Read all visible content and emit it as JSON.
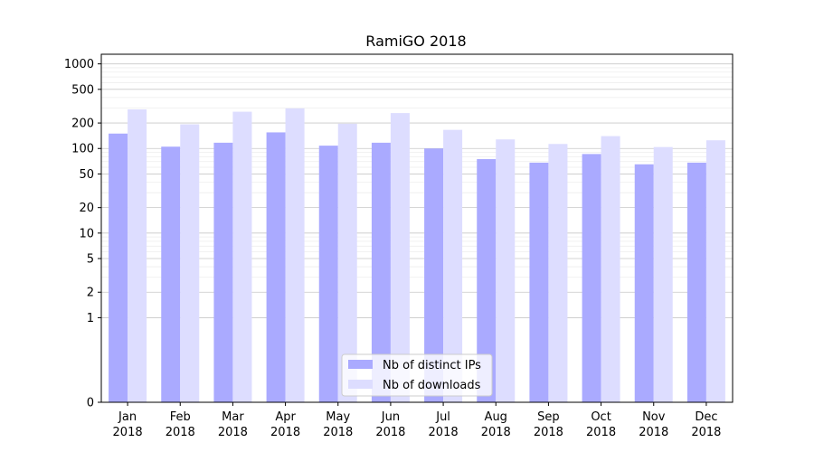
{
  "chart_data": {
    "type": "bar",
    "title": "RamiGO 2018",
    "xlabel": "",
    "ylabel": "",
    "y_scale": "symlog",
    "ylim": [
      0,
      1300
    ],
    "y_ticks": [
      0,
      1,
      2,
      5,
      10,
      20,
      50,
      100,
      200,
      500,
      1000
    ],
    "grid": true,
    "legend_position": "bottom-center",
    "categories": [
      {
        "month": "Jan",
        "year": "2018"
      },
      {
        "month": "Feb",
        "year": "2018"
      },
      {
        "month": "Mar",
        "year": "2018"
      },
      {
        "month": "Apr",
        "year": "2018"
      },
      {
        "month": "May",
        "year": "2018"
      },
      {
        "month": "Jun",
        "year": "2018"
      },
      {
        "month": "Jul",
        "year": "2018"
      },
      {
        "month": "Aug",
        "year": "2018"
      },
      {
        "month": "Sep",
        "year": "2018"
      },
      {
        "month": "Oct",
        "year": "2018"
      },
      {
        "month": "Nov",
        "year": "2018"
      },
      {
        "month": "Dec",
        "year": "2018"
      }
    ],
    "series": [
      {
        "name": "Nb of distinct IPs",
        "color": "#aaaaff",
        "values": [
          150,
          105,
          117,
          155,
          108,
          117,
          100,
          75,
          68,
          86,
          65,
          68
        ]
      },
      {
        "name": "Nb of downloads",
        "color": "#ddddff",
        "values": [
          290,
          193,
          272,
          298,
          196,
          262,
          166,
          128,
          113,
          140,
          104,
          125
        ]
      }
    ]
  }
}
